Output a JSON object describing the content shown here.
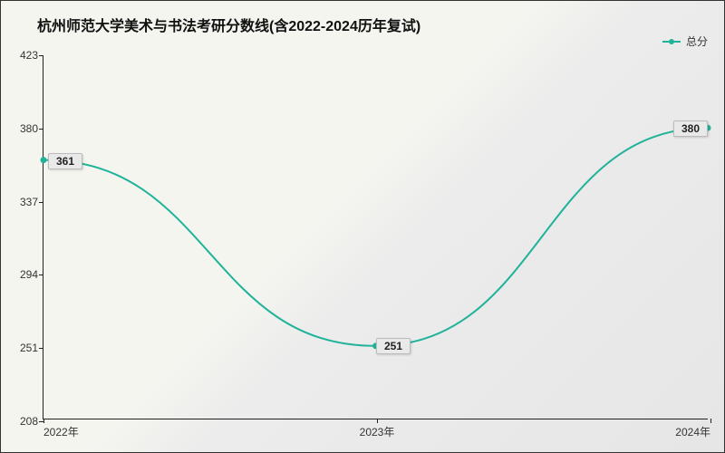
{
  "chart": {
    "type": "line",
    "title": "杭州师范大学美术与书法考研分数线(含2022-2024历年复试)",
    "title_fontsize": 16,
    "title_fontweight": "bold",
    "legend": {
      "label": "总分",
      "position": "top-right",
      "fontsize": 12
    },
    "background": {
      "gradient_start": "#f5f5f0",
      "gradient_end": "#e6e6e6",
      "border_color": "#333333"
    },
    "line": {
      "color": "#20b39a",
      "width": 2,
      "marker_color": "#20b39a",
      "marker_size": 5,
      "smooth": true
    },
    "x": {
      "categories": [
        "2022年",
        "2023年",
        "2024年"
      ],
      "label_fontsize": 12,
      "axis_color": "#222222"
    },
    "y": {
      "min": 208,
      "max": 423,
      "ticks": [
        208,
        251,
        294,
        337,
        380,
        423
      ],
      "label_fontsize": 12,
      "axis_color": "#222222",
      "grid": false
    },
    "data": {
      "values": [
        361,
        251,
        380
      ],
      "point_labels": [
        "361",
        "251",
        "380"
      ],
      "label_bg": "#e9e9e9",
      "label_border": "#bbbbbb",
      "label_fontsize": 12
    }
  }
}
